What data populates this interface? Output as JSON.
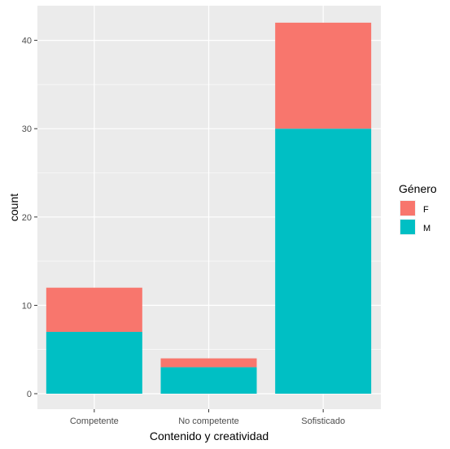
{
  "chart_data": {
    "type": "bar",
    "stacked": true,
    "categories": [
      "Competente",
      "No competente",
      "Sofisticado"
    ],
    "series": [
      {
        "name": "M",
        "values": [
          7,
          3,
          30
        ],
        "color": "#00BFC4"
      },
      {
        "name": "F",
        "values": [
          5,
          1,
          12
        ],
        "color": "#F8766D"
      }
    ],
    "xlabel": "Contenido y creatividad",
    "ylabel": "count",
    "ylim": [
      0,
      44
    ],
    "yticks": [
      0,
      10,
      20,
      30,
      40
    ],
    "grid": true,
    "panel_background": "#EBEBEB",
    "legend": {
      "title": "Género",
      "position": "right",
      "entries": [
        {
          "label": "F",
          "color": "#F8766D"
        },
        {
          "label": "M",
          "color": "#00BFC4"
        }
      ]
    }
  }
}
